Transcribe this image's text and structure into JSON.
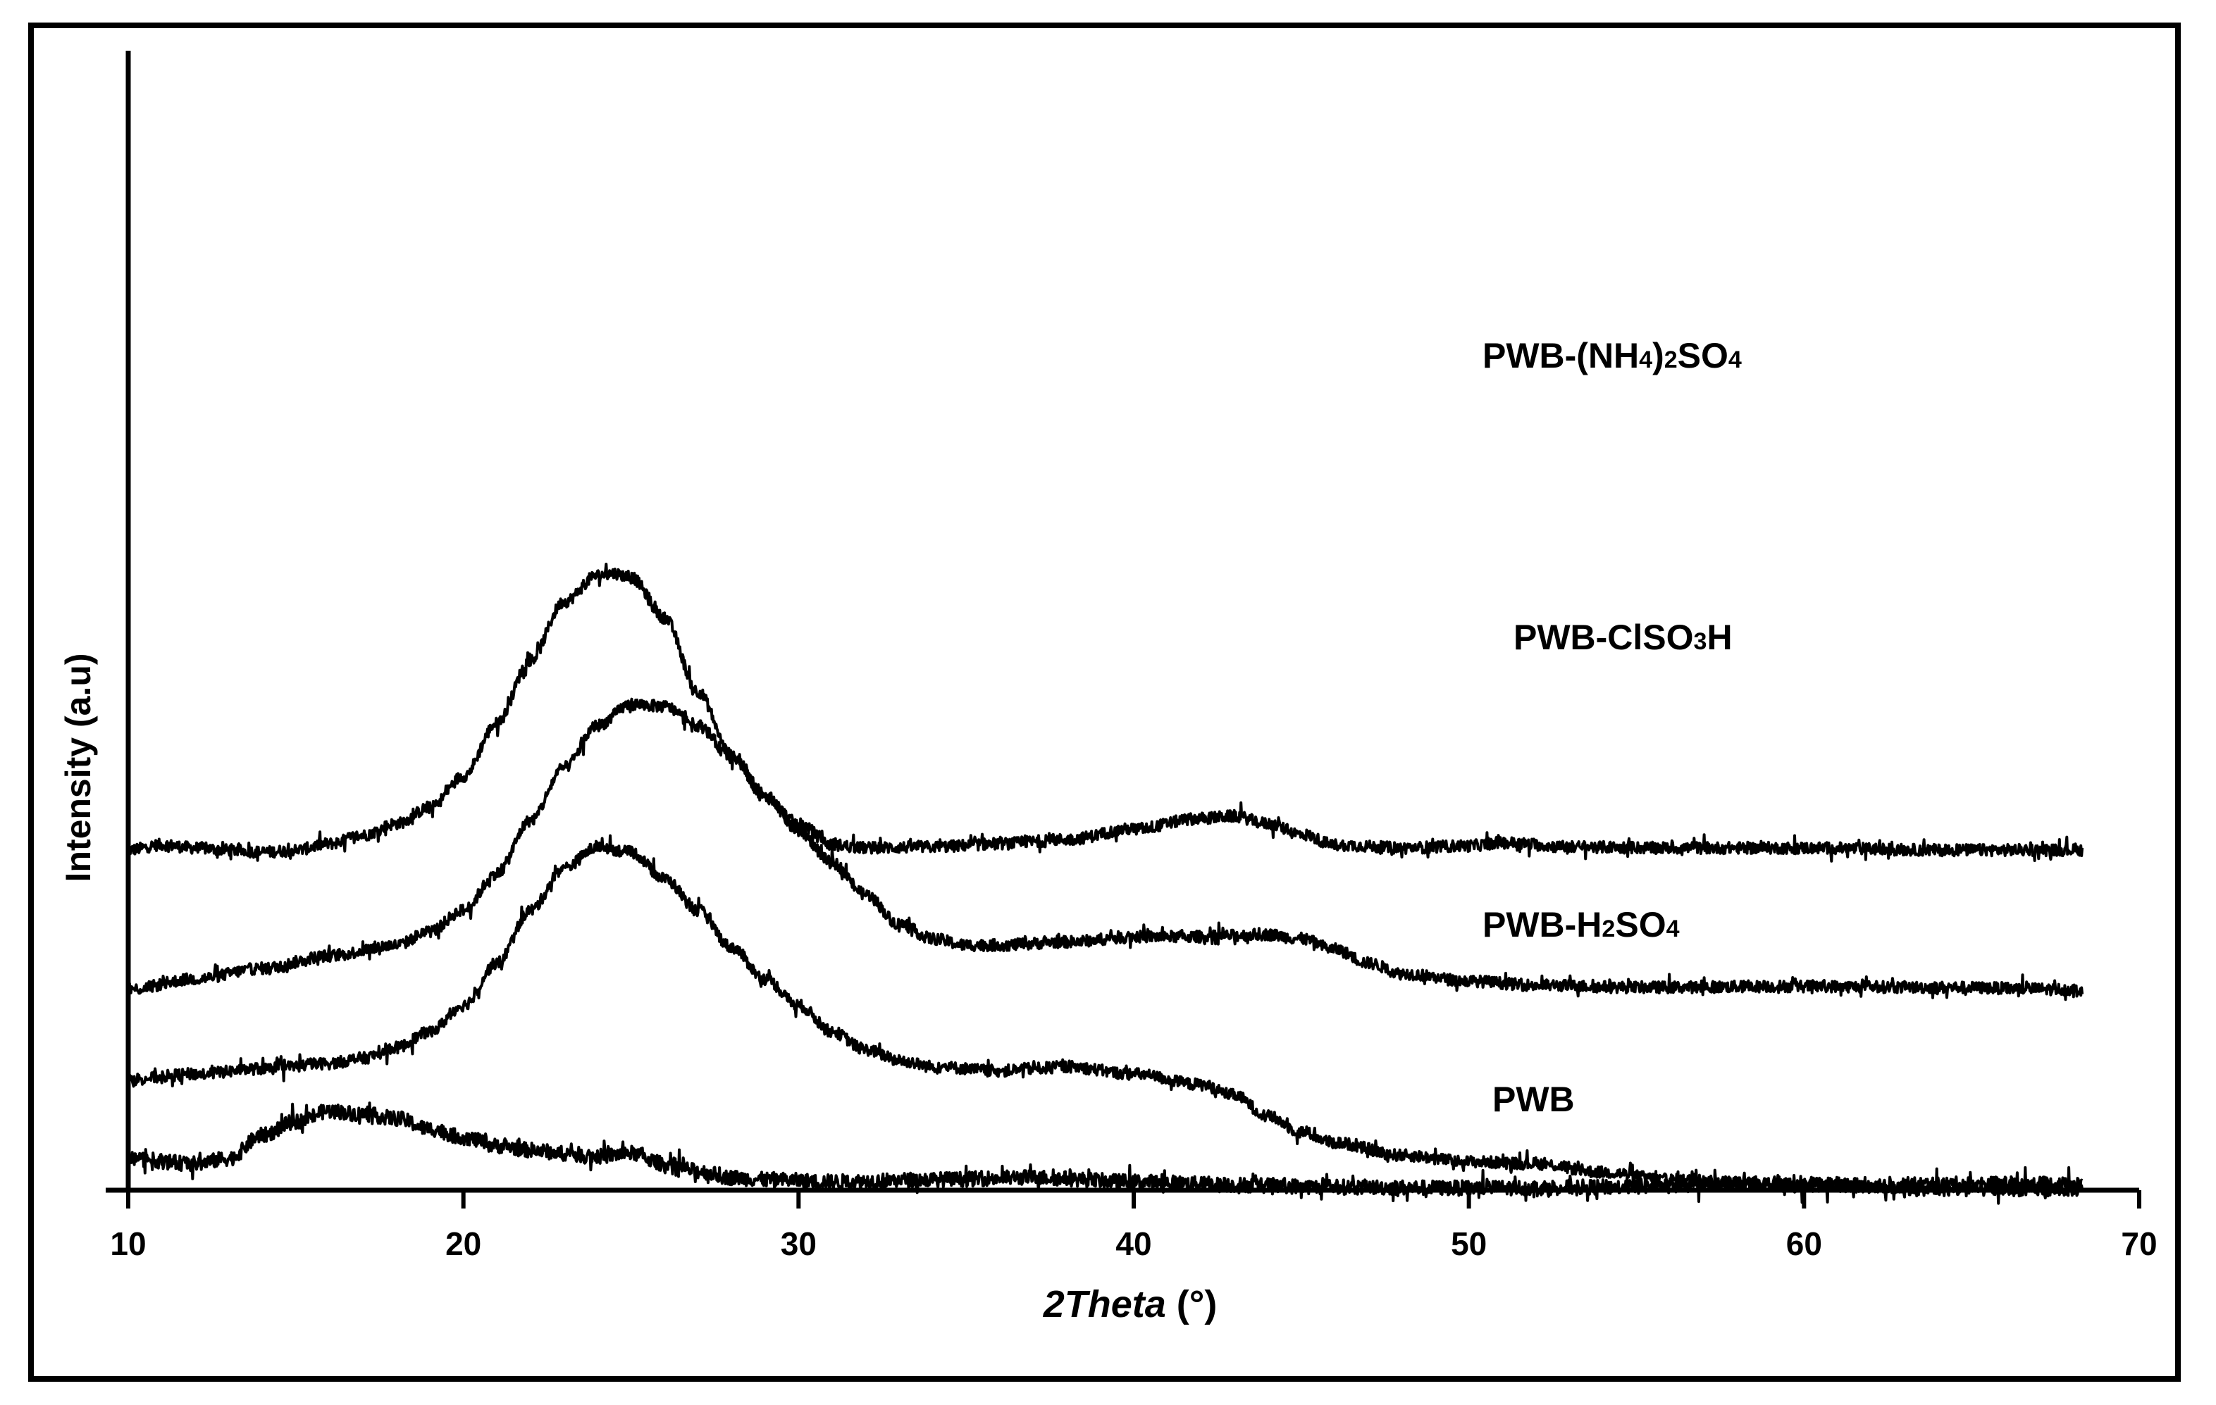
{
  "chart_data": {
    "type": "line",
    "title": "",
    "xlabel_main": "2Theta",
    "xlabel_unit": " (°)",
    "ylabel": "Intensity (a.u)",
    "xlim": [
      10,
      70
    ],
    "x_ticks": [
      10,
      20,
      30,
      40,
      50,
      60,
      70
    ],
    "x_tick_labels": [
      "10",
      "20",
      "30",
      "40",
      "50",
      "60",
      "70"
    ],
    "y_ticks_shown": false,
    "x_data_range": [
      10,
      68.3
    ],
    "series": [
      {
        "name": "PWB-(NH4)2SO4",
        "label_parts": [
          "PWB-(NH",
          "4",
          ")",
          "2",
          "SO",
          "4"
        ],
        "offset": 3.22,
        "noise": 0.055,
        "points": [
          [
            10,
            0
          ],
          [
            11,
            0.05
          ],
          [
            12,
            0.02
          ],
          [
            13,
            0
          ],
          [
            14,
            -0.02
          ],
          [
            15,
            0
          ],
          [
            16,
            0.06
          ],
          [
            17,
            0.14
          ],
          [
            18,
            0.25
          ],
          [
            19,
            0.4
          ],
          [
            20,
            0.7
          ],
          [
            21,
            1.2
          ],
          [
            22,
            1.8
          ],
          [
            23,
            2.35
          ],
          [
            24,
            2.6
          ],
          [
            24.5,
            2.62
          ],
          [
            25,
            2.58
          ],
          [
            26,
            2.2
          ],
          [
            27,
            1.5
          ],
          [
            28,
            0.9
          ],
          [
            29,
            0.5
          ],
          [
            30,
            0.25
          ],
          [
            31,
            0.05
          ],
          [
            32,
            0.02
          ],
          [
            34,
            0.03
          ],
          [
            36,
            0.06
          ],
          [
            38,
            0.1
          ],
          [
            40,
            0.2
          ],
          [
            42,
            0.3
          ],
          [
            43,
            0.32
          ],
          [
            44,
            0.25
          ],
          [
            45,
            0.15
          ],
          [
            46,
            0.05
          ],
          [
            48,
            0.02
          ],
          [
            50,
            0.04
          ],
          [
            51,
            0.07
          ],
          [
            53,
            0.03
          ],
          [
            56,
            0.02
          ],
          [
            60,
            0.02
          ],
          [
            64,
            0
          ],
          [
            68.3,
            0
          ]
        ]
      },
      {
        "name": "PWB-ClSO3H",
        "label_parts": [
          "PWB-ClSO",
          "3",
          "H",
          "",
          "",
          ""
        ],
        "offset": 1.9,
        "noise": 0.055,
        "points": [
          [
            10,
            0
          ],
          [
            12,
            0.1
          ],
          [
            14,
            0.2
          ],
          [
            16,
            0.32
          ],
          [
            18,
            0.42
          ],
          [
            19,
            0.55
          ],
          [
            20,
            0.75
          ],
          [
            21,
            1.1
          ],
          [
            22,
            1.6
          ],
          [
            23,
            2.1
          ],
          [
            24,
            2.5
          ],
          [
            25,
            2.7
          ],
          [
            26,
            2.68
          ],
          [
            27,
            2.5
          ],
          [
            28,
            2.2
          ],
          [
            29,
            1.85
          ],
          [
            30,
            1.5
          ],
          [
            31,
            1.2
          ],
          [
            32,
            0.9
          ],
          [
            33,
            0.62
          ],
          [
            34,
            0.48
          ],
          [
            35,
            0.42
          ],
          [
            36,
            0.42
          ],
          [
            38,
            0.45
          ],
          [
            40,
            0.5
          ],
          [
            42,
            0.5
          ],
          [
            44,
            0.52
          ],
          [
            45,
            0.48
          ],
          [
            46,
            0.38
          ],
          [
            47,
            0.25
          ],
          [
            48,
            0.15
          ],
          [
            50,
            0.08
          ],
          [
            52,
            0.04
          ],
          [
            55,
            0.02
          ],
          [
            60,
            0.03
          ],
          [
            64,
            0.02
          ],
          [
            68.3,
            0
          ]
        ]
      },
      {
        "name": "PWB-H2SO4",
        "label_parts": [
          "PWB-H",
          "2",
          "SO",
          "4",
          "",
          ""
        ],
        "offset": 1.05,
        "noise": 0.055,
        "points": [
          [
            10,
            0
          ],
          [
            12,
            0.05
          ],
          [
            14,
            0.1
          ],
          [
            16,
            0.15
          ],
          [
            17,
            0.2
          ],
          [
            18,
            0.3
          ],
          [
            19,
            0.45
          ],
          [
            20,
            0.7
          ],
          [
            21,
            1.1
          ],
          [
            22,
            1.6
          ],
          [
            23,
            2.0
          ],
          [
            24,
            2.2
          ],
          [
            25,
            2.15
          ],
          [
            26,
            1.9
          ],
          [
            27,
            1.6
          ],
          [
            28,
            1.25
          ],
          [
            29,
            0.95
          ],
          [
            30,
            0.7
          ],
          [
            31,
            0.45
          ],
          [
            32,
            0.28
          ],
          [
            33,
            0.18
          ],
          [
            34,
            0.12
          ],
          [
            36,
            0.08
          ],
          [
            37,
            0.1
          ],
          [
            38,
            0.12
          ],
          [
            40,
            0.05
          ],
          [
            42,
            -0.05
          ],
          [
            43,
            -0.15
          ],
          [
            44,
            -0.35
          ],
          [
            45,
            -0.5
          ],
          [
            46,
            -0.6
          ],
          [
            48,
            -0.72
          ],
          [
            50,
            -0.78
          ],
          [
            52,
            -0.8
          ],
          [
            54,
            -0.88
          ],
          [
            56,
            -0.95
          ],
          [
            58,
            -0.98
          ],
          [
            60,
            -1.0
          ],
          [
            62,
            -1.02
          ],
          [
            64,
            -1.05
          ],
          [
            66,
            -1.05
          ],
          [
            68.3,
            -1.05
          ]
        ]
      },
      {
        "name": "PWB",
        "label_parts": [
          "PWB",
          "",
          "",
          "",
          "",
          ""
        ],
        "offset": 0.3,
        "noise": 0.07,
        "points": [
          [
            10,
            0
          ],
          [
            12,
            -0.05
          ],
          [
            13,
            0
          ],
          [
            14,
            0.22
          ],
          [
            15,
            0.35
          ],
          [
            16,
            0.45
          ],
          [
            17,
            0.42
          ],
          [
            18,
            0.38
          ],
          [
            19,
            0.28
          ],
          [
            20,
            0.2
          ],
          [
            21,
            0.12
          ],
          [
            22,
            0.08
          ],
          [
            23,
            0.05
          ],
          [
            24,
            0.02
          ],
          [
            25,
            0.05
          ],
          [
            26,
            -0.05
          ],
          [
            27,
            -0.12
          ],
          [
            28,
            -0.18
          ],
          [
            29,
            -0.2
          ],
          [
            31,
            -0.22
          ],
          [
            34,
            -0.2
          ],
          [
            37,
            -0.18
          ],
          [
            40,
            -0.22
          ],
          [
            43,
            -0.25
          ],
          [
            46,
            -0.27
          ],
          [
            50,
            -0.28
          ],
          [
            54,
            -0.27
          ],
          [
            58,
            -0.24
          ],
          [
            62,
            -0.25
          ],
          [
            66,
            -0.24
          ],
          [
            68.3,
            -0.25
          ]
        ]
      }
    ]
  }
}
